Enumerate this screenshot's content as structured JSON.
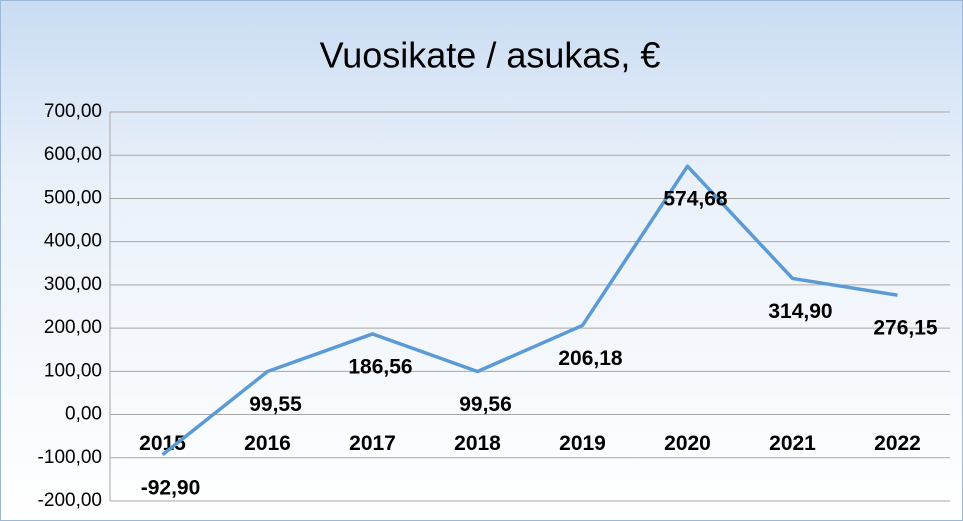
{
  "chart_data": {
    "type": "line",
    "title": "Vuosikate / asukas, €",
    "categories": [
      "2015",
      "2016",
      "2017",
      "2018",
      "2019",
      "2020",
      "2021",
      "2022"
    ],
    "series": [
      {
        "name": "Vuosikate / asukas",
        "color": "#5b9bd5",
        "values": [
          -92.9,
          99.55,
          186.56,
          99.56,
          206.18,
          574.68,
          314.9,
          276.15
        ],
        "value_labels": [
          "-92,90",
          "99,55",
          "186,56",
          "99,56",
          "206,18",
          "574,68",
          "314,90",
          "276,15"
        ]
      }
    ],
    "ylim": [
      -200,
      700
    ],
    "yticks": [
      {
        "value": -200,
        "label": "-200,00"
      },
      {
        "value": -100,
        "label": "-100,00"
      },
      {
        "value": 0,
        "label": "0,00"
      },
      {
        "value": 100,
        "label": "100,00"
      },
      {
        "value": 200,
        "label": "200,00"
      },
      {
        "value": 300,
        "label": "300,00"
      },
      {
        "value": 400,
        "label": "400,00"
      },
      {
        "value": 500,
        "label": "500,00"
      },
      {
        "value": 600,
        "label": "600,00"
      },
      {
        "value": 700,
        "label": "700,00"
      }
    ],
    "grid": true
  }
}
